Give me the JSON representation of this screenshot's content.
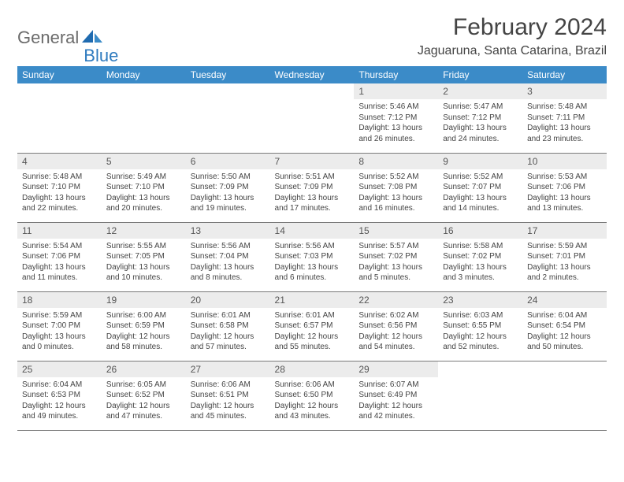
{
  "logo": {
    "part1": "General",
    "part2": "Blue"
  },
  "title": "February 2024",
  "location": "Jaguaruna, Santa Catarina, Brazil",
  "colors": {
    "header_bg": "#3b8bc8",
    "header_fg": "#ffffff",
    "daynum_bg": "#ececec",
    "text": "#444444",
    "logo_gray": "#6b6b6b",
    "logo_blue": "#2f7bbf",
    "rule": "#7a7a7a"
  },
  "weekdays": [
    "Sunday",
    "Monday",
    "Tuesday",
    "Wednesday",
    "Thursday",
    "Friday",
    "Saturday"
  ],
  "weeks": [
    [
      null,
      null,
      null,
      null,
      {
        "n": 1,
        "sr": "5:46 AM",
        "ss": "7:12 PM",
        "dl": "13 hours and 26 minutes."
      },
      {
        "n": 2,
        "sr": "5:47 AM",
        "ss": "7:12 PM",
        "dl": "13 hours and 24 minutes."
      },
      {
        "n": 3,
        "sr": "5:48 AM",
        "ss": "7:11 PM",
        "dl": "13 hours and 23 minutes."
      }
    ],
    [
      {
        "n": 4,
        "sr": "5:48 AM",
        "ss": "7:10 PM",
        "dl": "13 hours and 22 minutes."
      },
      {
        "n": 5,
        "sr": "5:49 AM",
        "ss": "7:10 PM",
        "dl": "13 hours and 20 minutes."
      },
      {
        "n": 6,
        "sr": "5:50 AM",
        "ss": "7:09 PM",
        "dl": "13 hours and 19 minutes."
      },
      {
        "n": 7,
        "sr": "5:51 AM",
        "ss": "7:09 PM",
        "dl": "13 hours and 17 minutes."
      },
      {
        "n": 8,
        "sr": "5:52 AM",
        "ss": "7:08 PM",
        "dl": "13 hours and 16 minutes."
      },
      {
        "n": 9,
        "sr": "5:52 AM",
        "ss": "7:07 PM",
        "dl": "13 hours and 14 minutes."
      },
      {
        "n": 10,
        "sr": "5:53 AM",
        "ss": "7:06 PM",
        "dl": "13 hours and 13 minutes."
      }
    ],
    [
      {
        "n": 11,
        "sr": "5:54 AM",
        "ss": "7:06 PM",
        "dl": "13 hours and 11 minutes."
      },
      {
        "n": 12,
        "sr": "5:55 AM",
        "ss": "7:05 PM",
        "dl": "13 hours and 10 minutes."
      },
      {
        "n": 13,
        "sr": "5:56 AM",
        "ss": "7:04 PM",
        "dl": "13 hours and 8 minutes."
      },
      {
        "n": 14,
        "sr": "5:56 AM",
        "ss": "7:03 PM",
        "dl": "13 hours and 6 minutes."
      },
      {
        "n": 15,
        "sr": "5:57 AM",
        "ss": "7:02 PM",
        "dl": "13 hours and 5 minutes."
      },
      {
        "n": 16,
        "sr": "5:58 AM",
        "ss": "7:02 PM",
        "dl": "13 hours and 3 minutes."
      },
      {
        "n": 17,
        "sr": "5:59 AM",
        "ss": "7:01 PM",
        "dl": "13 hours and 2 minutes."
      }
    ],
    [
      {
        "n": 18,
        "sr": "5:59 AM",
        "ss": "7:00 PM",
        "dl": "13 hours and 0 minutes."
      },
      {
        "n": 19,
        "sr": "6:00 AM",
        "ss": "6:59 PM",
        "dl": "12 hours and 58 minutes."
      },
      {
        "n": 20,
        "sr": "6:01 AM",
        "ss": "6:58 PM",
        "dl": "12 hours and 57 minutes."
      },
      {
        "n": 21,
        "sr": "6:01 AM",
        "ss": "6:57 PM",
        "dl": "12 hours and 55 minutes."
      },
      {
        "n": 22,
        "sr": "6:02 AM",
        "ss": "6:56 PM",
        "dl": "12 hours and 54 minutes."
      },
      {
        "n": 23,
        "sr": "6:03 AM",
        "ss": "6:55 PM",
        "dl": "12 hours and 52 minutes."
      },
      {
        "n": 24,
        "sr": "6:04 AM",
        "ss": "6:54 PM",
        "dl": "12 hours and 50 minutes."
      }
    ],
    [
      {
        "n": 25,
        "sr": "6:04 AM",
        "ss": "6:53 PM",
        "dl": "12 hours and 49 minutes."
      },
      {
        "n": 26,
        "sr": "6:05 AM",
        "ss": "6:52 PM",
        "dl": "12 hours and 47 minutes."
      },
      {
        "n": 27,
        "sr": "6:06 AM",
        "ss": "6:51 PM",
        "dl": "12 hours and 45 minutes."
      },
      {
        "n": 28,
        "sr": "6:06 AM",
        "ss": "6:50 PM",
        "dl": "12 hours and 43 minutes."
      },
      {
        "n": 29,
        "sr": "6:07 AM",
        "ss": "6:49 PM",
        "dl": "12 hours and 42 minutes."
      },
      null,
      null
    ]
  ],
  "labels": {
    "sunrise": "Sunrise:",
    "sunset": "Sunset:",
    "daylight": "Daylight:"
  }
}
